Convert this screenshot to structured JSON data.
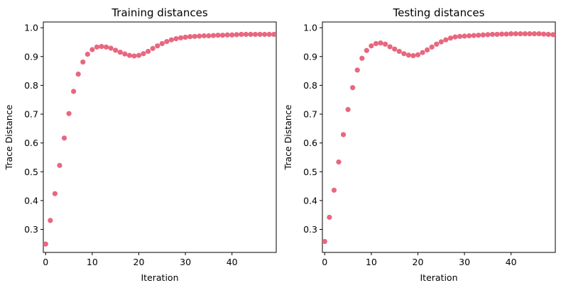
{
  "chart_data": [
    {
      "type": "scatter",
      "title": "Training distances",
      "xlabel": "Iteration",
      "ylabel": "Trace Distance",
      "xlim": [
        -0.5,
        49.5
      ],
      "ylim": [
        0.22,
        1.02
      ],
      "xticks": [
        0,
        10,
        20,
        30,
        40
      ],
      "yticks": [
        0.3,
        0.4,
        0.5,
        0.6,
        0.7,
        0.8,
        0.9,
        1.0
      ],
      "grid": false,
      "marker_color": "#e8677f",
      "series": [
        {
          "x": [
            0,
            1,
            2,
            3,
            4,
            5,
            6,
            7,
            8,
            9,
            10,
            11,
            12,
            13,
            14,
            15,
            16,
            17,
            18,
            19,
            20,
            21,
            22,
            23,
            24,
            25,
            26,
            27,
            28,
            29,
            30,
            31,
            32,
            33,
            34,
            35,
            36,
            37,
            38,
            39,
            40,
            41,
            42,
            43,
            44,
            45,
            46,
            47,
            48,
            49
          ],
          "y": [
            0.249,
            0.331,
            0.424,
            0.522,
            0.617,
            0.702,
            0.779,
            0.839,
            0.881,
            0.908,
            0.924,
            0.933,
            0.935,
            0.933,
            0.929,
            0.922,
            0.915,
            0.909,
            0.904,
            0.902,
            0.904,
            0.91,
            0.918,
            0.928,
            0.937,
            0.945,
            0.952,
            0.958,
            0.962,
            0.965,
            0.967,
            0.969,
            0.97,
            0.971,
            0.972,
            0.972,
            0.973,
            0.974,
            0.974,
            0.975,
            0.975,
            0.976,
            0.977,
            0.977,
            0.977,
            0.977,
            0.977,
            0.977,
            0.977,
            0.977
          ]
        }
      ]
    },
    {
      "type": "scatter",
      "title": "Testing distances",
      "xlabel": "Iteration",
      "ylabel": "Trace Distance",
      "xlim": [
        -0.5,
        49.5
      ],
      "ylim": [
        0.22,
        1.02
      ],
      "xticks": [
        0,
        10,
        20,
        30,
        40
      ],
      "yticks": [
        0.3,
        0.4,
        0.5,
        0.6,
        0.7,
        0.8,
        0.9,
        1.0
      ],
      "grid": false,
      "marker_color": "#e8677f",
      "series": [
        {
          "x": [
            0,
            1,
            2,
            3,
            4,
            5,
            6,
            7,
            8,
            9,
            10,
            11,
            12,
            13,
            14,
            15,
            16,
            17,
            18,
            19,
            20,
            21,
            22,
            23,
            24,
            25,
            26,
            27,
            28,
            29,
            30,
            31,
            32,
            33,
            34,
            35,
            36,
            37,
            38,
            39,
            40,
            41,
            42,
            43,
            44,
            45,
            46,
            47,
            48,
            49
          ],
          "y": [
            0.258,
            0.342,
            0.436,
            0.534,
            0.629,
            0.716,
            0.792,
            0.853,
            0.894,
            0.921,
            0.937,
            0.945,
            0.947,
            0.943,
            0.934,
            0.926,
            0.918,
            0.91,
            0.905,
            0.903,
            0.906,
            0.914,
            0.923,
            0.933,
            0.943,
            0.951,
            0.958,
            0.964,
            0.968,
            0.97,
            0.971,
            0.972,
            0.973,
            0.974,
            0.975,
            0.976,
            0.977,
            0.977,
            0.978,
            0.978,
            0.979,
            0.979,
            0.979,
            0.979,
            0.979,
            0.979,
            0.979,
            0.978,
            0.977,
            0.976
          ]
        }
      ]
    }
  ]
}
